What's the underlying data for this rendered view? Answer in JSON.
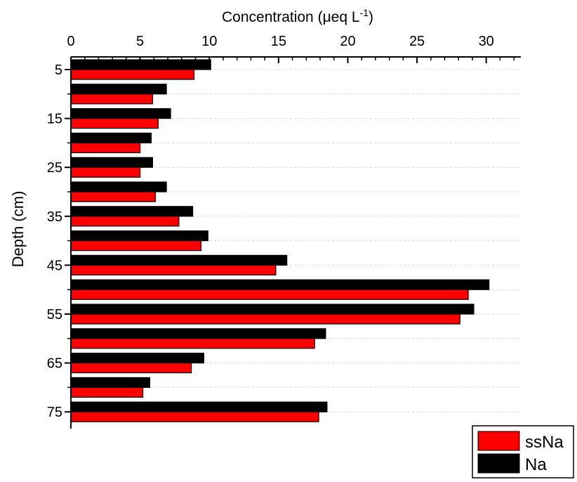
{
  "chart_data": {
    "type": "bar",
    "orientation": "horizontal",
    "x_axis_position": "top",
    "xlabel": "Concentration (",
    "xlabel_mu": "μ",
    "xlabel_mid": "eq L",
    "xlabel_sup": "-1",
    "xlabel_end": ")",
    "ylabel": "Depth (cm)",
    "xlim": [
      0,
      32.5
    ],
    "xticks": [
      0,
      5,
      10,
      15,
      20,
      25,
      30
    ],
    "yticks": [
      5,
      15,
      25,
      35,
      45,
      55,
      65,
      75
    ],
    "grid": "horizontal dashed",
    "legend_position": "bottom-right",
    "categories": [
      5,
      10,
      15,
      20,
      25,
      30,
      35,
      40,
      45,
      50,
      55,
      60,
      65,
      70,
      75
    ],
    "series": [
      {
        "name": "Na",
        "color": "#000000",
        "values": [
          10.1,
          6.9,
          7.2,
          5.8,
          5.9,
          6.9,
          8.8,
          9.9,
          15.6,
          30.2,
          29.1,
          18.4,
          9.6,
          5.7,
          18.5
        ]
      },
      {
        "name": "ssNa",
        "color": "#ff0000",
        "values": [
          8.9,
          5.9,
          6.3,
          5.0,
          5.0,
          6.1,
          7.8,
          9.4,
          14.8,
          28.7,
          28.1,
          17.6,
          8.7,
          5.2,
          17.9
        ]
      }
    ],
    "legend": [
      {
        "name": "ssNa",
        "color": "#ff0000"
      },
      {
        "name": "Na",
        "color": "#000000"
      }
    ]
  }
}
